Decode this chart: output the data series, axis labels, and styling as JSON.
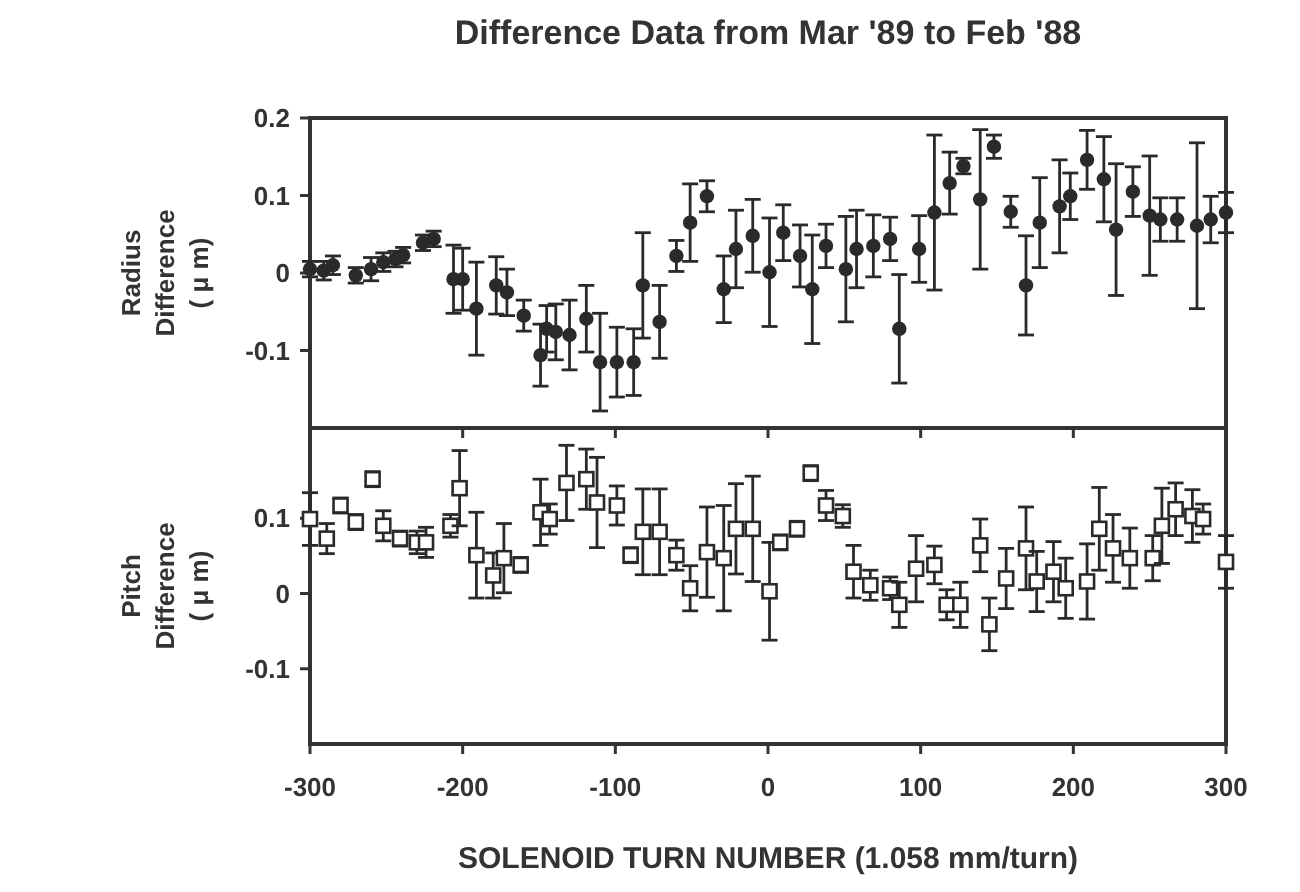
{
  "chart_data": [
    {
      "type": "scatter",
      "title": "Difference Data from Mar '89 to Feb '88",
      "ylabel": "Radius\nDifference\n( μ m)",
      "xlim": [
        -300,
        300
      ],
      "xticks": [
        -300,
        -200,
        -100,
        0,
        100,
        200,
        300
      ],
      "ylim": [
        -0.2,
        0.2
      ],
      "yticks": [
        0.2,
        0.1,
        0,
        -0.1
      ],
      "tick_labels": "y",
      "grid": false,
      "marker": "circle",
      "series": [
        {
          "color": "#2a2a2a",
          "x": [
            -300,
            -291,
            -285,
            -270,
            -260,
            -252,
            -244,
            -239,
            -226,
            -219,
            -206,
            -200,
            -191,
            -178,
            -171,
            -160,
            -149,
            -145,
            -139,
            -130,
            -119,
            -110,
            -99,
            -88,
            -82,
            -71,
            -60,
            -51,
            -40,
            -29,
            -21,
            -10,
            1,
            10,
            21,
            29,
            38,
            51,
            58,
            69,
            80,
            86,
            99,
            109,
            119,
            128,
            139,
            148,
            159,
            169,
            178,
            191,
            198,
            209,
            220,
            228,
            239,
            250,
            257,
            268,
            281,
            290,
            300
          ],
          "values": [
            0.005,
            0.003,
            0.01,
            -0.003,
            0.005,
            0.014,
            0.018,
            0.023,
            0.039,
            0.044,
            -0.008,
            -0.008,
            -0.046,
            -0.016,
            -0.025,
            -0.055,
            -0.106,
            -0.072,
            -0.076,
            -0.08,
            -0.059,
            -0.115,
            -0.115,
            -0.115,
            -0.016,
            -0.063,
            0.022,
            0.065,
            0.099,
            -0.021,
            0.031,
            0.048,
            0.001,
            0.052,
            0.022,
            -0.021,
            0.035,
            0.005,
            0.031,
            0.035,
            0.044,
            -0.072,
            0.031,
            0.078,
            0.116,
            0.138,
            0.095,
            0.163,
            0.079,
            -0.016,
            0.065,
            0.086,
            0.099,
            0.146,
            0.121,
            0.056,
            0.105,
            0.074,
            0.069,
            0.069,
            0.061,
            0.069,
            0.078
          ],
          "errors": [
            0.01,
            0.012,
            0.012,
            0.01,
            0.015,
            0.012,
            0.01,
            0.01,
            0.01,
            0.01,
            0.044,
            0.04,
            0.06,
            0.037,
            0.03,
            0.02,
            0.04,
            0.03,
            0.036,
            0.045,
            0.043,
            0.063,
            0.045,
            0.043,
            0.068,
            0.047,
            0.02,
            0.05,
            0.02,
            0.043,
            0.05,
            0.047,
            0.07,
            0.036,
            0.04,
            0.07,
            0.028,
            0.068,
            0.05,
            0.04,
            0.028,
            0.07,
            0.043,
            0.1,
            0.04,
            0.01,
            0.09,
            0.015,
            0.02,
            0.064,
            0.058,
            0.06,
            0.03,
            0.038,
            0.055,
            0.085,
            0.032,
            0.077,
            0.028,
            0.028,
            0.107,
            0.03,
            0.026
          ]
        }
      ]
    },
    {
      "type": "scatter",
      "ylabel": "Pitch\nDifference\n( μ m)",
      "xlabel": "SOLENOID  TURN  NUMBER  (1.058  mm/turn)",
      "xlim": [
        -300,
        300
      ],
      "xticks": [
        -300,
        -200,
        -100,
        0,
        100,
        200,
        300
      ],
      "ylim": [
        -0.2,
        0.22
      ],
      "yticks": [
        0.1,
        0,
        -0.1
      ],
      "grid": false,
      "marker": "square",
      "series": [
        {
          "color": "#2a2a2a",
          "x": [
            -300,
            -289,
            -280,
            -270,
            -259,
            -252,
            -241,
            -230,
            -224,
            -208,
            -202,
            -191,
            -180,
            -173,
            -162,
            -149,
            -143,
            -132,
            -119,
            -112,
            -99,
            -90,
            -82,
            -71,
            -60,
            -51,
            -40,
            -29,
            -21,
            -10,
            1,
            8,
            19,
            28,
            38,
            49,
            56,
            67,
            80,
            86,
            97,
            109,
            117,
            126,
            139,
            145,
            156,
            169,
            176,
            187,
            195,
            209,
            217,
            226,
            237,
            252,
            258,
            267,
            278,
            285,
            300
          ],
          "values": [
            0.099,
            0.073,
            0.117,
            0.095,
            0.152,
            0.09,
            0.073,
            0.068,
            0.068,
            0.09,
            0.14,
            0.051,
            0.024,
            0.047,
            0.038,
            0.108,
            0.099,
            0.147,
            0.152,
            0.121,
            0.117,
            0.051,
            0.082,
            0.082,
            0.051,
            0.007,
            0.055,
            0.047,
            0.086,
            0.086,
            0.003,
            0.068,
            0.086,
            0.16,
            0.117,
            0.103,
            0.029,
            0.011,
            0.007,
            -0.015,
            0.033,
            0.038,
            -0.015,
            -0.015,
            0.064,
            -0.041,
            0.02,
            0.06,
            0.016,
            0.029,
            0.007,
            0.016,
            0.086,
            0.06,
            0.047,
            0.047,
            0.09,
            0.112,
            0.103,
            0.099,
            0.042
          ],
          "errors": [
            0.035,
            0.02,
            0.01,
            0.01,
            0.01,
            0.02,
            0.01,
            0.015,
            0.02,
            0.015,
            0.05,
            0.057,
            0.03,
            0.046,
            0.01,
            0.044,
            0.02,
            0.05,
            0.04,
            0.06,
            0.026,
            0.01,
            0.057,
            0.057,
            0.02,
            0.03,
            0.06,
            0.07,
            0.06,
            0.07,
            0.065,
            0.01,
            0.01,
            0.01,
            0.02,
            0.015,
            0.035,
            0.02,
            0.015,
            0.03,
            0.044,
            0.025,
            0.02,
            0.03,
            0.035,
            0.035,
            0.04,
            0.055,
            0.04,
            0.04,
            0.04,
            0.05,
            0.055,
            0.045,
            0.04,
            0.03,
            0.05,
            0.035,
            0.035,
            0.02,
            0.035
          ]
        }
      ]
    }
  ]
}
